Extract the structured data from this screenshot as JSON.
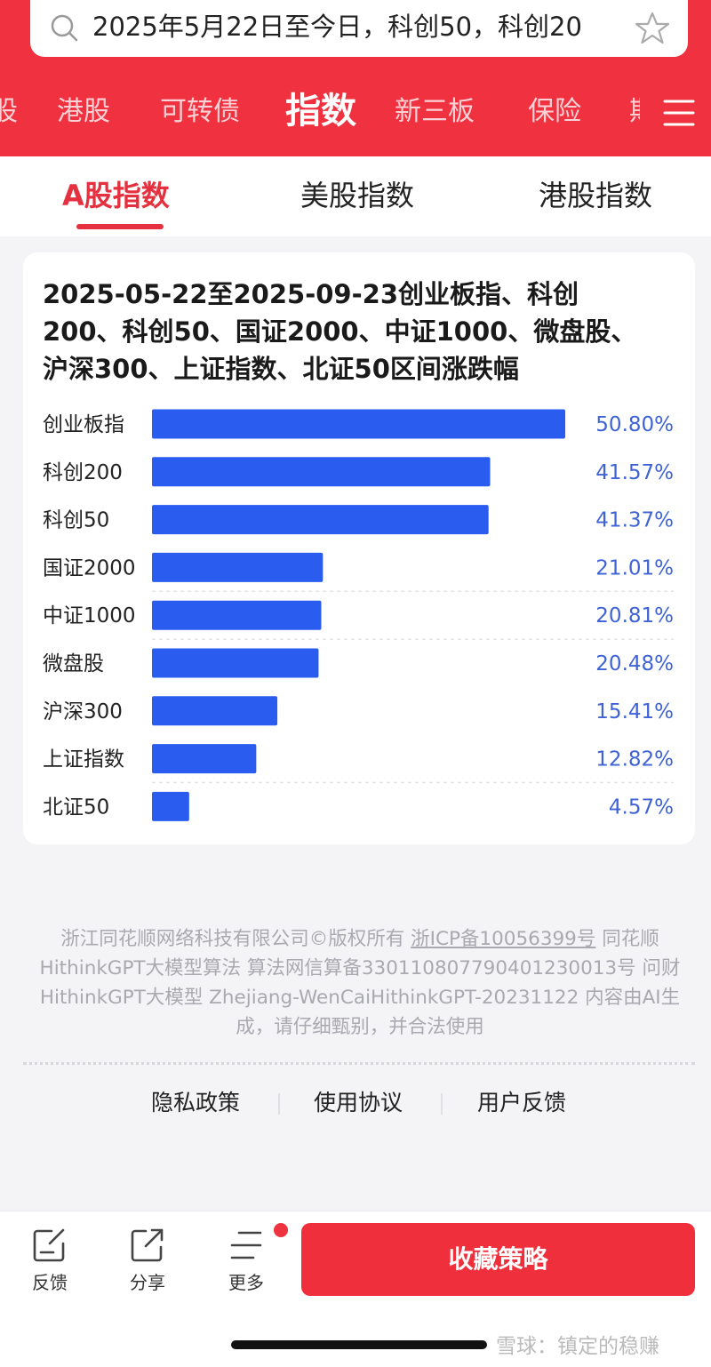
{
  "search": {
    "query": "2025年5月22日至今日，科创50，科创20",
    "icon": "search-icon",
    "favorite_icon": "star-icon"
  },
  "nav": {
    "tabs": [
      {
        "label": "股"
      },
      {
        "label": "港股"
      },
      {
        "label": "可转债"
      },
      {
        "label": "指数",
        "active": true
      },
      {
        "label": "新三板"
      },
      {
        "label": "保险"
      },
      {
        "label": "期"
      }
    ],
    "menu_icon": "hamburger-menu-icon"
  },
  "sub_tabs": [
    {
      "label": "A股指数",
      "active": true
    },
    {
      "label": "美股指数"
    },
    {
      "label": "港股指数"
    }
  ],
  "card": {
    "title": "2025-05-22至2025-09-23创业板指、科创200、科创50、国证2000、中证1000、微盘股、沪深300、上证指数、北证50区间涨跌幅"
  },
  "chart_data": {
    "type": "bar",
    "orientation": "horizontal",
    "categories": [
      "创业板指",
      "科创200",
      "科创50",
      "国证2000",
      "中证1000",
      "微盘股",
      "沪深300",
      "上证指数",
      "北证50"
    ],
    "values": [
      50.8,
      41.57,
      41.37,
      21.01,
      20.81,
      20.48,
      15.41,
      12.82,
      4.57
    ],
    "value_labels": [
      "50.80%",
      "41.57%",
      "41.37%",
      "21.01%",
      "20.81%",
      "20.48%",
      "15.41%",
      "12.82%",
      "4.57%"
    ],
    "xlim": [
      0,
      50.8
    ],
    "bar_color": "#2a5cf0",
    "label_color": "#3f63d6",
    "grid": false
  },
  "footer": {
    "copyright_prefix": "浙江同花顺网络科技有限公司©版权所有 ",
    "icp": "浙ICP备10056399号",
    "copyright_suffix": " 同花顺HithinkGPT大模型算法 算法网信算备330110807790401230013号 问财HithinkGPT大模型 Zhejiang-WenCaiHithinkGPT-20231122 内容由AI生成，请仔细甄别，并合法使用",
    "links": [
      "隐私政策",
      "使用协议",
      "用户反馈"
    ]
  },
  "bottom_bar": {
    "items": [
      {
        "label": "反馈",
        "icon": "feedback-icon"
      },
      {
        "label": "分享",
        "icon": "share-icon"
      },
      {
        "label": "更多",
        "icon": "more-icon"
      }
    ],
    "primary_button": "收藏策略"
  },
  "watermark": "雪球：镇定的稳赚",
  "colors": {
    "brand_red": "#f0313f",
    "bar_blue": "#2a5cf0"
  }
}
